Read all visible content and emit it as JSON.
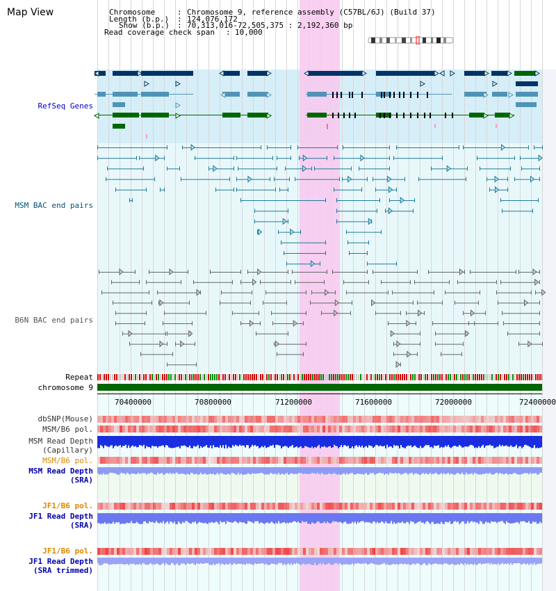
{
  "page": {
    "title": "Map View"
  },
  "header": {
    "chromosome_key": "Chromosome",
    "chromosome_value": "Chromosome 9, reference assembly (C57BL/6J) (Build 37)",
    "length_key": "Length (b.p.)",
    "length_value": "124,076,172",
    "show_key": "Show (b.p.)",
    "show_value": "70,313,016-72,505,375 : 2,192,360 bp",
    "coverage_key": "Read coverage check span",
    "coverage_value": "10,000"
  },
  "tracks": {
    "refseq": "RefSeq Genes",
    "msm_bac": "MSM BAC end pairs",
    "b6n_bac": "B6N BAC end pairs",
    "repeat": "Repeat",
    "chromosome": "chromosome 9",
    "dbsnp": "dbSNP(Mouse)",
    "msm_b6_pol_1": "MSM/B6 pol.",
    "msm_depth_cap_1": "MSM Read Depth",
    "msm_depth_cap_2": "(Capillary)",
    "msm_b6_pol_2": "MSM/B6 pol.",
    "msm_depth_sra_1": "MSM Read Depth",
    "msm_depth_sra_2": "(SRA)",
    "jf1_b6_pol_1": "JF1/B6 pol.",
    "jf1_depth_sra_1": "JF1 Read Depth",
    "jf1_depth_sra_2": "(SRA)",
    "jf1_b6_pol_2": "JF1/B6 pol.",
    "jf1_depth_trim_1": "JF1 Read Depth",
    "jf1_depth_trim_2": "(SRA trimmed)"
  },
  "axis": {
    "ticks": [
      "70400000",
      "70800000",
      "71200000",
      "71600000",
      "72000000",
      "72400000"
    ]
  },
  "colors": {
    "refseq_label": "#0000cc",
    "msm_bac_label": "#005577",
    "b6n_bac_label": "#555555",
    "gene_dark": "#003366",
    "gene_mid": "#4f94b8",
    "gene_green": "#006600",
    "highlight": "#f8c8ee",
    "orange": "#dd8800",
    "blue_label": "#0000aa"
  }
}
